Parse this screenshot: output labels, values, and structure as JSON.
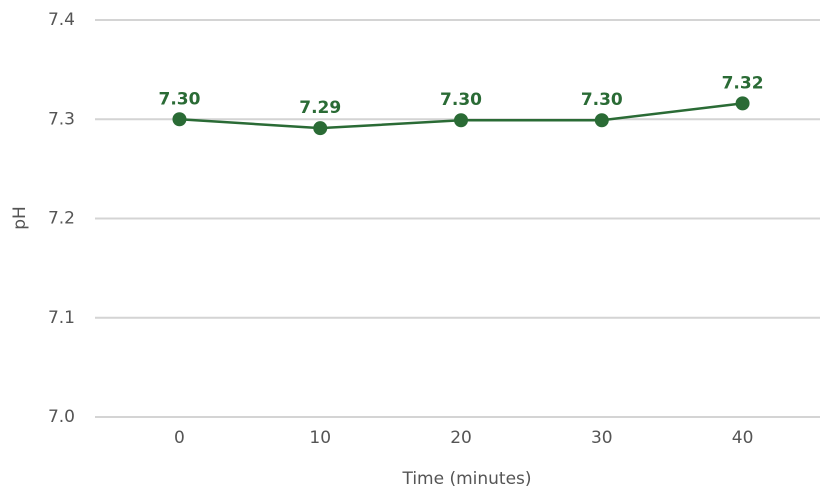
{
  "chart_data": {
    "type": "line",
    "x": [
      0,
      10,
      20,
      30,
      40
    ],
    "series": [
      {
        "name": "pH",
        "color": "#2a6b35",
        "values": [
          7.3,
          7.291,
          7.299,
          7.299,
          7.316
        ],
        "value_labels": [
          "7.30",
          "7.29",
          "7.30",
          "7.30",
          "7.32"
        ]
      }
    ],
    "xlabel": "Time (minutes)",
    "ylabel": "pH",
    "xlim": [
      -6,
      45.5
    ],
    "xticks": [
      0,
      10,
      20,
      30,
      40
    ],
    "ylim": [
      7.0,
      7.4
    ],
    "yticks": [
      {
        "value": 7.0,
        "label": "7.0"
      },
      {
        "value": 7.1,
        "label": "7.1"
      },
      {
        "value": 7.2,
        "label": "7.2"
      },
      {
        "value": 7.3,
        "label": "7.3"
      },
      {
        "value": 7.4,
        "label": "7.4"
      }
    ],
    "grid": true
  }
}
